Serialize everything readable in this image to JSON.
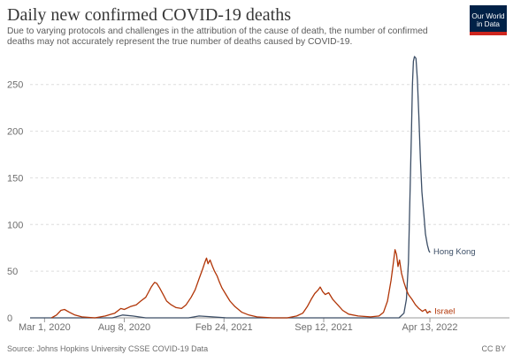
{
  "header": {
    "title": "Daily new confirmed COVID-19 deaths",
    "subtitle": "Due to varying protocols and challenges in the attribution of the cause of death, the number of confirmed deaths may not accurately represent the true number of deaths caused by COVID-19.",
    "logo_line1": "Our World",
    "logo_line2": "in Data"
  },
  "footer": {
    "source": "Source: Johns Hopkins University CSSE COVID-19 Data",
    "license": "CC BY"
  },
  "chart_data": {
    "type": "line",
    "title": "Daily new confirmed COVID-19 deaths",
    "xlabel": "",
    "ylabel": "",
    "x_is_date": true,
    "xlim": [
      "2020-02-01",
      "2022-06-30"
    ],
    "ylim": [
      0,
      280
    ],
    "yticks": [
      0,
      50,
      100,
      150,
      200,
      250
    ],
    "xtick_labels": [
      {
        "date": "2020-03-01",
        "label": "Mar 1, 2020"
      },
      {
        "date": "2020-08-08",
        "label": "Aug 8, 2020"
      },
      {
        "date": "2021-02-24",
        "label": "Feb 24, 2021"
      },
      {
        "date": "2021-09-12",
        "label": "Sep 12, 2021"
      },
      {
        "date": "2022-04-13",
        "label": "Apr 13, 2022"
      }
    ],
    "grid": "horizontal-dashed",
    "legend": "labels at line ends",
    "series": [
      {
        "name": "Hong Kong",
        "color": "#3c4e66",
        "points": [
          [
            "2020-02-01",
            0
          ],
          [
            "2020-03-15",
            0
          ],
          [
            "2020-07-15",
            0
          ],
          [
            "2020-08-05",
            3
          ],
          [
            "2020-08-25",
            2
          ],
          [
            "2020-09-20",
            0
          ],
          [
            "2020-12-15",
            0
          ],
          [
            "2021-01-05",
            2
          ],
          [
            "2021-02-01",
            1
          ],
          [
            "2021-03-01",
            0
          ],
          [
            "2022-01-25",
            0
          ],
          [
            "2022-02-10",
            0
          ],
          [
            "2022-02-20",
            5
          ],
          [
            "2022-02-25",
            20
          ],
          [
            "2022-03-01",
            60
          ],
          [
            "2022-03-04",
            130
          ],
          [
            "2022-03-07",
            200
          ],
          [
            "2022-03-09",
            250
          ],
          [
            "2022-03-11",
            275
          ],
          [
            "2022-03-13",
            280
          ],
          [
            "2022-03-16",
            278
          ],
          [
            "2022-03-19",
            255
          ],
          [
            "2022-03-22",
            215
          ],
          [
            "2022-03-25",
            170
          ],
          [
            "2022-03-28",
            135
          ],
          [
            "2022-04-01",
            110
          ],
          [
            "2022-04-04",
            90
          ],
          [
            "2022-04-08",
            78
          ],
          [
            "2022-04-11",
            72
          ],
          [
            "2022-04-13",
            70
          ]
        ]
      },
      {
        "name": "Israel",
        "color": "#b13507",
        "points": [
          [
            "2020-03-15",
            0
          ],
          [
            "2020-03-25",
            3
          ],
          [
            "2020-04-03",
            8
          ],
          [
            "2020-04-10",
            9
          ],
          [
            "2020-04-20",
            6
          ],
          [
            "2020-05-01",
            3
          ],
          [
            "2020-05-15",
            1
          ],
          [
            "2020-06-10",
            0
          ],
          [
            "2020-07-01",
            2
          ],
          [
            "2020-07-20",
            5
          ],
          [
            "2020-08-01",
            10
          ],
          [
            "2020-08-08",
            9
          ],
          [
            "2020-08-20",
            12
          ],
          [
            "2020-09-01",
            14
          ],
          [
            "2020-09-10",
            18
          ],
          [
            "2020-09-20",
            22
          ],
          [
            "2020-09-25",
            27
          ],
          [
            "2020-10-01",
            33
          ],
          [
            "2020-10-05",
            36
          ],
          [
            "2020-10-08",
            38
          ],
          [
            "2020-10-12",
            37
          ],
          [
            "2020-10-18",
            32
          ],
          [
            "2020-10-25",
            25
          ],
          [
            "2020-11-01",
            18
          ],
          [
            "2020-11-10",
            14
          ],
          [
            "2020-11-20",
            11
          ],
          [
            "2020-12-01",
            10
          ],
          [
            "2020-12-10",
            14
          ],
          [
            "2020-12-20",
            22
          ],
          [
            "2020-12-28",
            30
          ],
          [
            "2021-01-05",
            42
          ],
          [
            "2021-01-12",
            52
          ],
          [
            "2021-01-17",
            60
          ],
          [
            "2021-01-20",
            64
          ],
          [
            "2021-01-23",
            58
          ],
          [
            "2021-01-27",
            62
          ],
          [
            "2021-02-01",
            55
          ],
          [
            "2021-02-05",
            50
          ],
          [
            "2021-02-10",
            45
          ],
          [
            "2021-02-15",
            38
          ],
          [
            "2021-02-20",
            32
          ],
          [
            "2021-02-28",
            25
          ],
          [
            "2021-03-08",
            18
          ],
          [
            "2021-03-18",
            12
          ],
          [
            "2021-04-01",
            6
          ],
          [
            "2021-04-15",
            3
          ],
          [
            "2021-05-01",
            1
          ],
          [
            "2021-06-01",
            0
          ],
          [
            "2021-07-01",
            0
          ],
          [
            "2021-07-20",
            2
          ],
          [
            "2021-08-01",
            5
          ],
          [
            "2021-08-10",
            12
          ],
          [
            "2021-08-18",
            20
          ],
          [
            "2021-08-25",
            26
          ],
          [
            "2021-09-01",
            30
          ],
          [
            "2021-09-05",
            33
          ],
          [
            "2021-09-10",
            28
          ],
          [
            "2021-09-15",
            25
          ],
          [
            "2021-09-22",
            27
          ],
          [
            "2021-09-30",
            20
          ],
          [
            "2021-10-10",
            14
          ],
          [
            "2021-10-20",
            8
          ],
          [
            "2021-11-01",
            4
          ],
          [
            "2021-11-20",
            2
          ],
          [
            "2021-12-15",
            1
          ],
          [
            "2022-01-01",
            2
          ],
          [
            "2022-01-10",
            6
          ],
          [
            "2022-01-18",
            18
          ],
          [
            "2022-01-25",
            40
          ],
          [
            "2022-01-30",
            60
          ],
          [
            "2022-02-02",
            73
          ],
          [
            "2022-02-05",
            68
          ],
          [
            "2022-02-08",
            55
          ],
          [
            "2022-02-11",
            62
          ],
          [
            "2022-02-15",
            48
          ],
          [
            "2022-02-20",
            38
          ],
          [
            "2022-02-25",
            30
          ],
          [
            "2022-03-01",
            25
          ],
          [
            "2022-03-08",
            20
          ],
          [
            "2022-03-15",
            14
          ],
          [
            "2022-03-22",
            10
          ],
          [
            "2022-03-29",
            7
          ],
          [
            "2022-04-04",
            9
          ],
          [
            "2022-04-08",
            5
          ],
          [
            "2022-04-12",
            7
          ],
          [
            "2022-04-15",
            6
          ]
        ]
      }
    ]
  }
}
